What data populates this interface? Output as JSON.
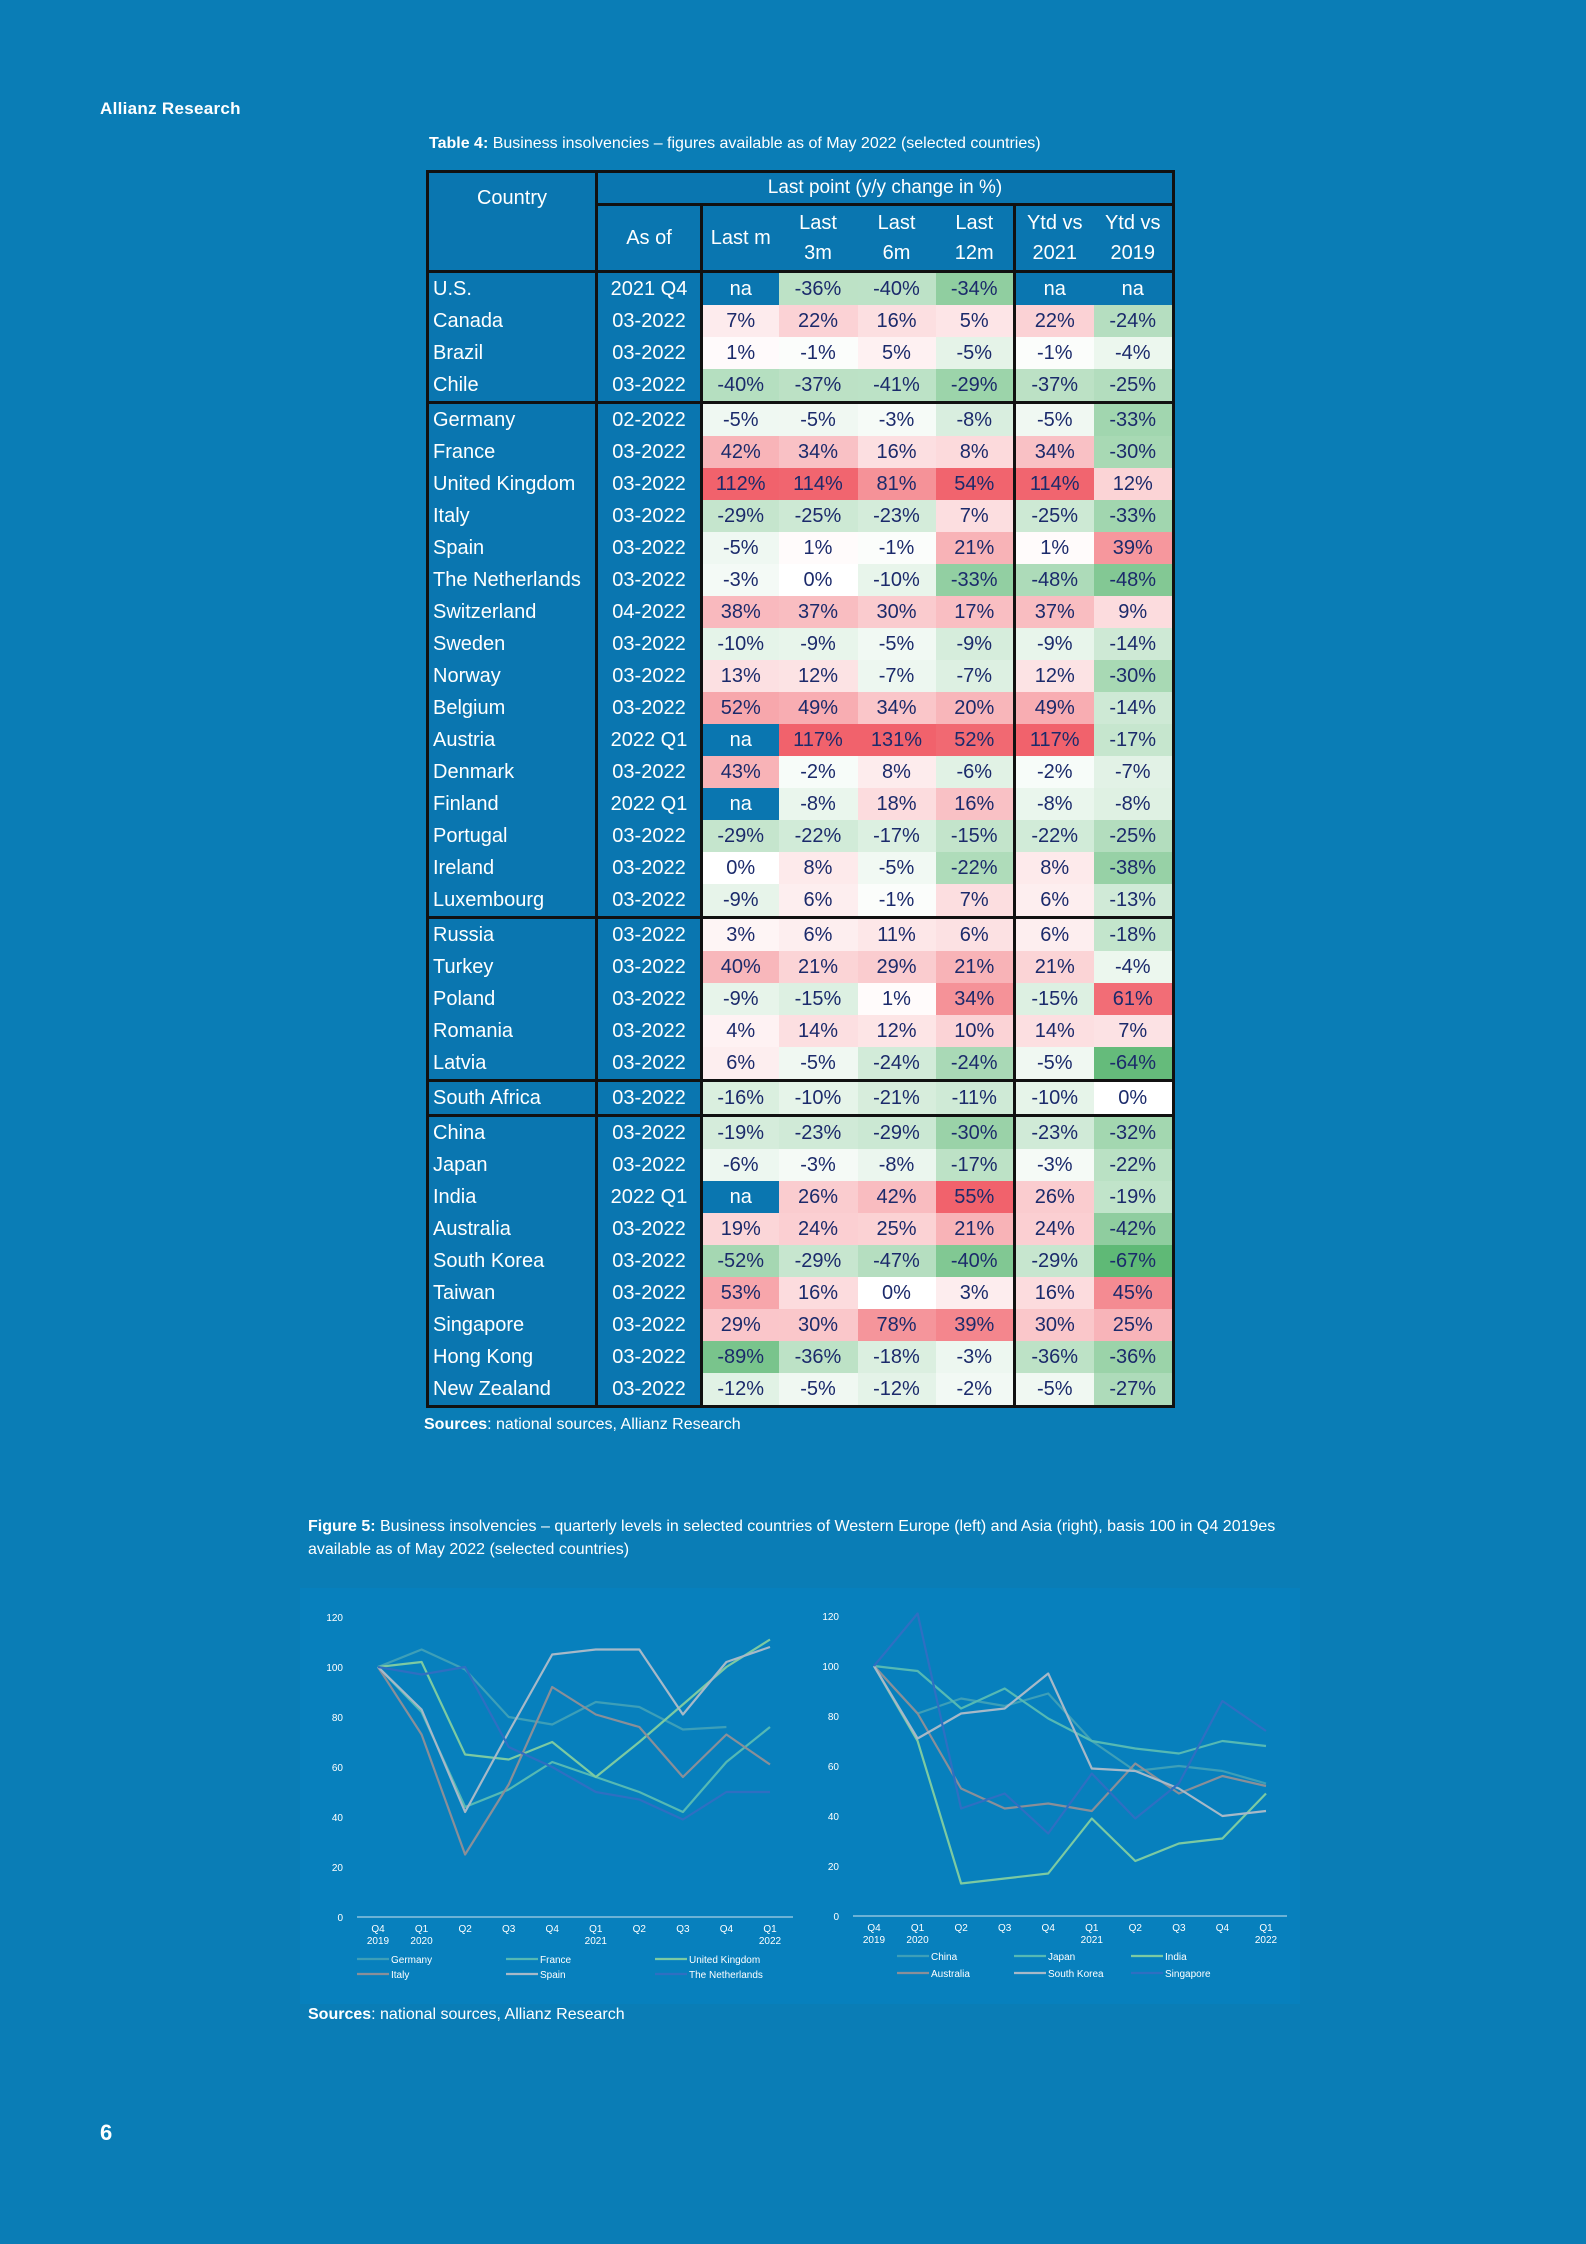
{
  "header": {
    "brand": "Allianz Research"
  },
  "table": {
    "title_bold": "Table 4:",
    "title_rest": " Business insolvencies – figures available as of May 2022 (selected countries)",
    "headers": {
      "country": "Country",
      "group": "Last point (y/y change in %)",
      "as_of": "As of",
      "last_m": "Last m",
      "last_3m": [
        "Last",
        "3m"
      ],
      "last_6m": [
        "Last",
        "6m"
      ],
      "last_12m": [
        "Last",
        "12m"
      ],
      "ytd_2021": [
        "Ytd vs",
        "2021"
      ],
      "ytd_2019": [
        "Ytd vs",
        "2019"
      ]
    },
    "groups": [
      [
        [
          "U.S.",
          "2021 Q4",
          "na",
          "-36%",
          "-40%",
          "-34%",
          "na",
          "na"
        ],
        [
          "Canada",
          "03-2022",
          "7%",
          "22%",
          "16%",
          "5%",
          "22%",
          "-24%"
        ],
        [
          "Brazil",
          "03-2022",
          "1%",
          "-1%",
          "5%",
          "-5%",
          "-1%",
          "-4%"
        ],
        [
          "Chile",
          "03-2022",
          "-40%",
          "-37%",
          "-41%",
          "-29%",
          "-37%",
          "-25%"
        ]
      ],
      [
        [
          "Germany",
          "02-2022",
          "-5%",
          "-5%",
          "-3%",
          "-8%",
          "-5%",
          "-33%"
        ],
        [
          "France",
          "03-2022",
          "42%",
          "34%",
          "16%",
          "8%",
          "34%",
          "-30%"
        ],
        [
          "United Kingdom",
          "03-2022",
          "112%",
          "114%",
          "81%",
          "54%",
          "114%",
          "12%"
        ],
        [
          "Italy",
          "03-2022",
          "-29%",
          "-25%",
          "-23%",
          "7%",
          "-25%",
          "-33%"
        ],
        [
          "Spain",
          "03-2022",
          "-5%",
          "1%",
          "-1%",
          "21%",
          "1%",
          "39%"
        ],
        [
          "The Netherlands",
          "03-2022",
          "-3%",
          "0%",
          "-10%",
          "-33%",
          "-48%",
          "-48%"
        ],
        [
          "Switzerland",
          "04-2022",
          "38%",
          "37%",
          "30%",
          "17%",
          "37%",
          "9%"
        ],
        [
          "Sweden",
          "03-2022",
          "-10%",
          "-9%",
          "-5%",
          "-9%",
          "-9%",
          "-14%"
        ],
        [
          "Norway",
          "03-2022",
          "13%",
          "12%",
          "-7%",
          "-7%",
          "12%",
          "-30%"
        ],
        [
          "Belgium",
          "03-2022",
          "52%",
          "49%",
          "34%",
          "20%",
          "49%",
          "-14%"
        ],
        [
          "Austria",
          "2022 Q1",
          "na",
          "117%",
          "131%",
          "52%",
          "117%",
          "-17%"
        ],
        [
          "Denmark",
          "03-2022",
          "43%",
          "-2%",
          "8%",
          "-6%",
          "-2%",
          "-7%"
        ],
        [
          "Finland",
          "2022 Q1",
          "na",
          "-8%",
          "18%",
          "16%",
          "-8%",
          "-8%"
        ],
        [
          "Portugal",
          "03-2022",
          "-29%",
          "-22%",
          "-17%",
          "-15%",
          "-22%",
          "-25%"
        ],
        [
          "Ireland",
          "03-2022",
          "0%",
          "8%",
          "-5%",
          "-22%",
          "8%",
          "-38%"
        ],
        [
          "Luxembourg",
          "03-2022",
          "-9%",
          "6%",
          "-1%",
          "7%",
          "6%",
          "-13%"
        ]
      ],
      [
        [
          "Russia",
          "03-2022",
          "3%",
          "6%",
          "11%",
          "6%",
          "6%",
          "-18%"
        ],
        [
          "Turkey",
          "03-2022",
          "40%",
          "21%",
          "29%",
          "21%",
          "21%",
          "-4%"
        ],
        [
          "Poland",
          "03-2022",
          "-9%",
          "-15%",
          "1%",
          "34%",
          "-15%",
          "61%"
        ],
        [
          "Romania",
          "03-2022",
          "4%",
          "14%",
          "12%",
          "10%",
          "14%",
          "7%"
        ],
        [
          "Latvia",
          "03-2022",
          "6%",
          "-5%",
          "-24%",
          "-24%",
          "-5%",
          "-64%"
        ]
      ],
      [
        [
          "South Africa",
          "03-2022",
          "-16%",
          "-10%",
          "-21%",
          "-11%",
          "-10%",
          "0%"
        ]
      ],
      [
        [
          "China",
          "03-2022",
          "-19%",
          "-23%",
          "-29%",
          "-30%",
          "-23%",
          "-32%"
        ],
        [
          "Japan",
          "03-2022",
          "-6%",
          "-3%",
          "-8%",
          "-17%",
          "-3%",
          "-22%"
        ],
        [
          "India",
          "2022 Q1",
          "na",
          "26%",
          "42%",
          "55%",
          "26%",
          "-19%"
        ],
        [
          "Australia",
          "03-2022",
          "19%",
          "24%",
          "25%",
          "21%",
          "24%",
          "-42%"
        ],
        [
          "South Korea",
          "03-2022",
          "-52%",
          "-29%",
          "-47%",
          "-40%",
          "-29%",
          "-67%"
        ],
        [
          "Taiwan",
          "03-2022",
          "53%",
          "16%",
          "0%",
          "3%",
          "16%",
          "45%"
        ],
        [
          "Singapore",
          "03-2022",
          "29%",
          "30%",
          "78%",
          "39%",
          "30%",
          "25%"
        ],
        [
          "Hong Kong",
          "03-2022",
          "-89%",
          "-36%",
          "-18%",
          "-3%",
          "-36%",
          "-36%"
        ],
        [
          "New Zealand",
          "03-2022",
          "-12%",
          "-5%",
          "-12%",
          "-2%",
          "-5%",
          "-27%"
        ]
      ]
    ],
    "colors": {
      "negative": "#57b56f",
      "positive": "#f05a64",
      "neutral": "#ffffff",
      "na": "#0a76b0"
    },
    "sources_bold": "Sources",
    "sources_rest": ": national sources, Allianz Research"
  },
  "figure": {
    "caption_bold": "Figure 5:",
    "caption_rest": " Business insolvencies – quarterly levels in selected countries of Western Europe (left) and Asia (right), basis 100 in Q4 2019es available as of May 2022 (selected countries)",
    "sources_bold": "Sources",
    "sources_rest": ": national sources, Allianz Research"
  },
  "chart_data": [
    {
      "type": "line",
      "title": "",
      "x": [
        [
          "Q4",
          "2019"
        ],
        [
          "Q1",
          "2020"
        ],
        [
          "Q2",
          ""
        ],
        [
          "Q3",
          ""
        ],
        [
          "Q4",
          ""
        ],
        [
          "Q1",
          "2021"
        ],
        [
          "Q2",
          ""
        ],
        [
          "Q3",
          ""
        ],
        [
          "Q4",
          ""
        ],
        [
          "Q1",
          "2022"
        ]
      ],
      "ylim": [
        0,
        120
      ],
      "yticks": [
        "0",
        "20",
        "40",
        "60",
        "80",
        "100",
        "120"
      ],
      "grid": false,
      "legend": "bottom",
      "series": [
        {
          "name": "Germany",
          "color": "#3d9fb8",
          "values": [
            100,
            107,
            99,
            80,
            77,
            86,
            84,
            75,
            76,
            null
          ]
        },
        {
          "name": "France",
          "color": "#55b9b4",
          "values": [
            100,
            82,
            44,
            51,
            62,
            56,
            50,
            42,
            62,
            76
          ]
        },
        {
          "name": "United Kingdom",
          "color": "#7ccaa2",
          "values": [
            100,
            102,
            65,
            63,
            70,
            56,
            70,
            85,
            100,
            111
          ]
        },
        {
          "name": "Italy",
          "color": "#8a8f98",
          "values": [
            100,
            73,
            25,
            53,
            92,
            81,
            76,
            56,
            73,
            61
          ]
        },
        {
          "name": "Spain",
          "color": "#a7b9c8",
          "values": [
            100,
            83,
            42,
            74,
            105,
            107,
            107,
            81,
            102,
            108
          ]
        },
        {
          "name": "The Netherlands",
          "color": "#2f6fc2",
          "values": [
            100,
            97,
            100,
            68,
            60,
            50,
            47,
            39,
            50,
            50
          ]
        }
      ]
    },
    {
      "type": "line",
      "title": "",
      "x": [
        [
          "Q4",
          "2019"
        ],
        [
          "Q1",
          "2020"
        ],
        [
          "Q2",
          ""
        ],
        [
          "Q3",
          ""
        ],
        [
          "Q4",
          ""
        ],
        [
          "Q1",
          "2021"
        ],
        [
          "Q2",
          ""
        ],
        [
          "Q3",
          ""
        ],
        [
          "Q4",
          ""
        ],
        [
          "Q1",
          "2022"
        ]
      ],
      "ylim": [
        0,
        120
      ],
      "yticks": [
        "0",
        "20",
        "40",
        "60",
        "80",
        "100",
        "120"
      ],
      "grid": false,
      "legend": "bottom",
      "series": [
        {
          "name": "China",
          "color": "#3d9fb8",
          "values": [
            100,
            81,
            87,
            84,
            89,
            70,
            58,
            60,
            58,
            53
          ]
        },
        {
          "name": "Japan",
          "color": "#55b9b4",
          "values": [
            100,
            98,
            83,
            91,
            79,
            70,
            67,
            65,
            70,
            68
          ]
        },
        {
          "name": "India",
          "color": "#7ccaa2",
          "values": [
            100,
            70,
            13,
            15,
            17,
            39,
            22,
            29,
            31,
            49
          ]
        },
        {
          "name": "Australia",
          "color": "#8a8f98",
          "values": [
            100,
            81,
            51,
            43,
            45,
            42,
            61,
            49,
            56,
            52
          ]
        },
        {
          "name": "South Korea",
          "color": "#a7b9c8",
          "values": [
            100,
            71,
            81,
            83,
            97,
            59,
            58,
            51,
            40,
            42
          ]
        },
        {
          "name": "Singapore",
          "color": "#2f6fc2",
          "values": [
            100,
            121,
            43,
            49,
            33,
            57,
            39,
            53,
            86,
            74
          ]
        }
      ]
    }
  ],
  "footer": {
    "page_number": "6"
  }
}
